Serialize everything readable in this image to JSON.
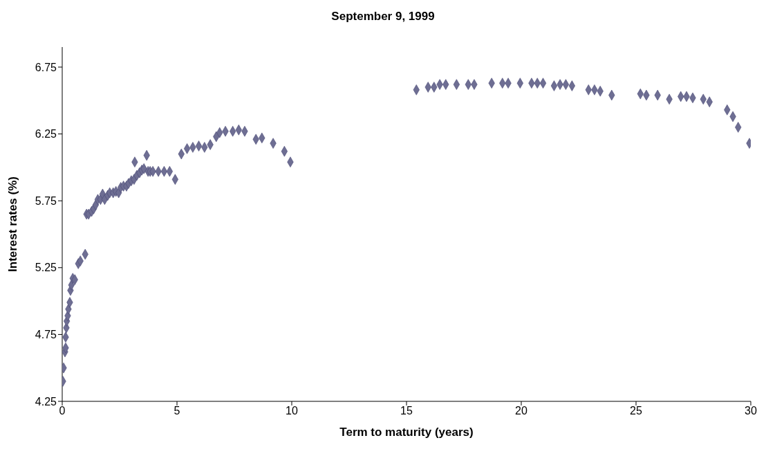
{
  "chart_data": {
    "type": "scatter",
    "title": "September 9, 1999",
    "xlabel": "Term to maturity (years)",
    "ylabel": "Interest rates (%)",
    "x": [
      0.03,
      0.06,
      0.12,
      0.15,
      0.15,
      0.18,
      0.2,
      0.24,
      0.27,
      0.33,
      0.36,
      0.4,
      0.46,
      0.55,
      0.7,
      0.79,
      1.0,
      1.06,
      1.15,
      1.28,
      1.37,
      1.46,
      1.55,
      1.67,
      1.76,
      1.85,
      1.98,
      2.07,
      2.22,
      2.34,
      2.46,
      2.55,
      2.67,
      2.8,
      2.89,
      3.01,
      3.13,
      3.16,
      3.25,
      3.37,
      3.47,
      3.56,
      3.68,
      3.74,
      3.83,
      3.95,
      4.19,
      4.44,
      4.68,
      4.92,
      5.19,
      5.44,
      5.69,
      5.95,
      6.2,
      6.45,
      6.71,
      6.86,
      7.11,
      7.43,
      7.69,
      7.95,
      8.44,
      8.7,
      9.19,
      9.68,
      9.94,
      15.43,
      15.94,
      16.2,
      16.45,
      16.71,
      17.18,
      17.69,
      17.95,
      18.71,
      19.18,
      19.43,
      19.95,
      20.45,
      20.7,
      20.95,
      21.43,
      21.69,
      21.94,
      22.21,
      22.93,
      23.19,
      23.44,
      23.94,
      25.19,
      25.45,
      25.94,
      26.45,
      26.95,
      27.2,
      27.47,
      27.93,
      28.2,
      28.97,
      29.22,
      29.45,
      29.94
    ],
    "series": [
      {
        "color": "#6e6e93",
        "values": [
          4.4,
          4.5,
          4.62,
          4.65,
          4.73,
          4.8,
          4.85,
          4.89,
          4.94,
          4.99,
          5.08,
          5.12,
          5.17,
          5.16,
          5.28,
          5.3,
          5.35,
          5.65,
          5.65,
          5.67,
          5.69,
          5.72,
          5.76,
          5.76,
          5.8,
          5.76,
          5.79,
          5.81,
          5.81,
          5.82,
          5.81,
          5.85,
          5.86,
          5.86,
          5.88,
          5.9,
          5.91,
          6.04,
          5.94,
          5.96,
          5.98,
          5.99,
          6.09,
          5.97,
          5.97,
          5.97,
          5.97,
          5.97,
          5.97,
          5.91,
          6.1,
          6.14,
          6.15,
          6.16,
          6.15,
          6.17,
          6.23,
          6.26,
          6.27,
          6.27,
          6.28,
          6.27,
          6.21,
          6.22,
          6.18,
          6.12,
          6.04,
          6.58,
          6.6,
          6.6,
          6.62,
          6.62,
          6.62,
          6.62,
          6.62,
          6.63,
          6.63,
          6.63,
          6.63,
          6.63,
          6.63,
          6.63,
          6.61,
          6.62,
          6.62,
          6.61,
          6.58,
          6.58,
          6.57,
          6.54,
          6.55,
          6.54,
          6.54,
          6.51,
          6.53,
          6.53,
          6.52,
          6.51,
          6.49,
          6.43,
          6.38,
          6.3,
          6.18
        ]
      }
    ],
    "xlim": [
      0,
      30
    ],
    "xticks": [
      0,
      5,
      10,
      15,
      20,
      25,
      30
    ],
    "ylim": [
      4.25,
      6.9
    ],
    "yticks": [
      4.25,
      4.75,
      5.25,
      5.75,
      6.25,
      6.75
    ],
    "marker": "diamond",
    "grid": false,
    "legend": false
  }
}
